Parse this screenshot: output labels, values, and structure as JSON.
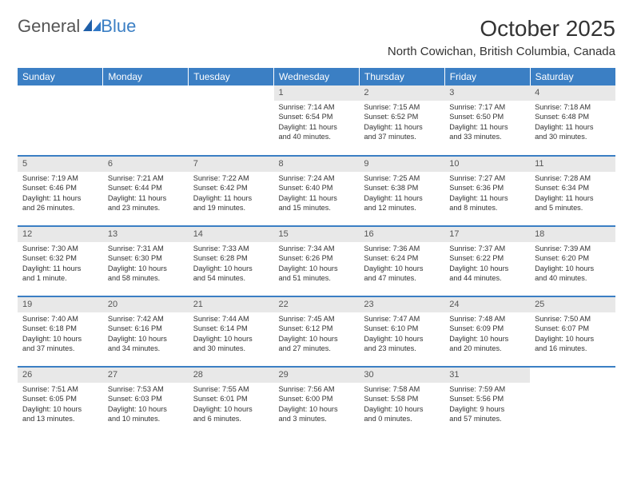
{
  "logo": {
    "word1": "General",
    "word2": "Blue"
  },
  "title": "October 2025",
  "location": "North Cowichan, British Columbia, Canada",
  "colors": {
    "header_bg": "#3b7fc4",
    "header_text": "#ffffff",
    "row_border": "#3b7fc4",
    "daynum_bg": "#e8e8e8",
    "text": "#333333",
    "logo_gray": "#555555",
    "logo_blue": "#3b7fc4"
  },
  "fonts": {
    "title_size": 28,
    "location_size": 15,
    "header_size": 12,
    "cell_size": 9.2,
    "daynum_size": 11
  },
  "weekdays": [
    "Sunday",
    "Monday",
    "Tuesday",
    "Wednesday",
    "Thursday",
    "Friday",
    "Saturday"
  ],
  "layout": {
    "columns": 7,
    "rows": 5,
    "col_width_pct": 14.28
  },
  "weeks": [
    [
      {
        "empty": true
      },
      {
        "empty": true
      },
      {
        "empty": true
      },
      {
        "day": "1",
        "sunrise": "Sunrise: 7:14 AM",
        "sunset": "Sunset: 6:54 PM",
        "dl1": "Daylight: 11 hours",
        "dl2": "and 40 minutes."
      },
      {
        "day": "2",
        "sunrise": "Sunrise: 7:15 AM",
        "sunset": "Sunset: 6:52 PM",
        "dl1": "Daylight: 11 hours",
        "dl2": "and 37 minutes."
      },
      {
        "day": "3",
        "sunrise": "Sunrise: 7:17 AM",
        "sunset": "Sunset: 6:50 PM",
        "dl1": "Daylight: 11 hours",
        "dl2": "and 33 minutes."
      },
      {
        "day": "4",
        "sunrise": "Sunrise: 7:18 AM",
        "sunset": "Sunset: 6:48 PM",
        "dl1": "Daylight: 11 hours",
        "dl2": "and 30 minutes."
      }
    ],
    [
      {
        "day": "5",
        "sunrise": "Sunrise: 7:19 AM",
        "sunset": "Sunset: 6:46 PM",
        "dl1": "Daylight: 11 hours",
        "dl2": "and 26 minutes."
      },
      {
        "day": "6",
        "sunrise": "Sunrise: 7:21 AM",
        "sunset": "Sunset: 6:44 PM",
        "dl1": "Daylight: 11 hours",
        "dl2": "and 23 minutes."
      },
      {
        "day": "7",
        "sunrise": "Sunrise: 7:22 AM",
        "sunset": "Sunset: 6:42 PM",
        "dl1": "Daylight: 11 hours",
        "dl2": "and 19 minutes."
      },
      {
        "day": "8",
        "sunrise": "Sunrise: 7:24 AM",
        "sunset": "Sunset: 6:40 PM",
        "dl1": "Daylight: 11 hours",
        "dl2": "and 15 minutes."
      },
      {
        "day": "9",
        "sunrise": "Sunrise: 7:25 AM",
        "sunset": "Sunset: 6:38 PM",
        "dl1": "Daylight: 11 hours",
        "dl2": "and 12 minutes."
      },
      {
        "day": "10",
        "sunrise": "Sunrise: 7:27 AM",
        "sunset": "Sunset: 6:36 PM",
        "dl1": "Daylight: 11 hours",
        "dl2": "and 8 minutes."
      },
      {
        "day": "11",
        "sunrise": "Sunrise: 7:28 AM",
        "sunset": "Sunset: 6:34 PM",
        "dl1": "Daylight: 11 hours",
        "dl2": "and 5 minutes."
      }
    ],
    [
      {
        "day": "12",
        "sunrise": "Sunrise: 7:30 AM",
        "sunset": "Sunset: 6:32 PM",
        "dl1": "Daylight: 11 hours",
        "dl2": "and 1 minute."
      },
      {
        "day": "13",
        "sunrise": "Sunrise: 7:31 AM",
        "sunset": "Sunset: 6:30 PM",
        "dl1": "Daylight: 10 hours",
        "dl2": "and 58 minutes."
      },
      {
        "day": "14",
        "sunrise": "Sunrise: 7:33 AM",
        "sunset": "Sunset: 6:28 PM",
        "dl1": "Daylight: 10 hours",
        "dl2": "and 54 minutes."
      },
      {
        "day": "15",
        "sunrise": "Sunrise: 7:34 AM",
        "sunset": "Sunset: 6:26 PM",
        "dl1": "Daylight: 10 hours",
        "dl2": "and 51 minutes."
      },
      {
        "day": "16",
        "sunrise": "Sunrise: 7:36 AM",
        "sunset": "Sunset: 6:24 PM",
        "dl1": "Daylight: 10 hours",
        "dl2": "and 47 minutes."
      },
      {
        "day": "17",
        "sunrise": "Sunrise: 7:37 AM",
        "sunset": "Sunset: 6:22 PM",
        "dl1": "Daylight: 10 hours",
        "dl2": "and 44 minutes."
      },
      {
        "day": "18",
        "sunrise": "Sunrise: 7:39 AM",
        "sunset": "Sunset: 6:20 PM",
        "dl1": "Daylight: 10 hours",
        "dl2": "and 40 minutes."
      }
    ],
    [
      {
        "day": "19",
        "sunrise": "Sunrise: 7:40 AM",
        "sunset": "Sunset: 6:18 PM",
        "dl1": "Daylight: 10 hours",
        "dl2": "and 37 minutes."
      },
      {
        "day": "20",
        "sunrise": "Sunrise: 7:42 AM",
        "sunset": "Sunset: 6:16 PM",
        "dl1": "Daylight: 10 hours",
        "dl2": "and 34 minutes."
      },
      {
        "day": "21",
        "sunrise": "Sunrise: 7:44 AM",
        "sunset": "Sunset: 6:14 PM",
        "dl1": "Daylight: 10 hours",
        "dl2": "and 30 minutes."
      },
      {
        "day": "22",
        "sunrise": "Sunrise: 7:45 AM",
        "sunset": "Sunset: 6:12 PM",
        "dl1": "Daylight: 10 hours",
        "dl2": "and 27 minutes."
      },
      {
        "day": "23",
        "sunrise": "Sunrise: 7:47 AM",
        "sunset": "Sunset: 6:10 PM",
        "dl1": "Daylight: 10 hours",
        "dl2": "and 23 minutes."
      },
      {
        "day": "24",
        "sunrise": "Sunrise: 7:48 AM",
        "sunset": "Sunset: 6:09 PM",
        "dl1": "Daylight: 10 hours",
        "dl2": "and 20 minutes."
      },
      {
        "day": "25",
        "sunrise": "Sunrise: 7:50 AM",
        "sunset": "Sunset: 6:07 PM",
        "dl1": "Daylight: 10 hours",
        "dl2": "and 16 minutes."
      }
    ],
    [
      {
        "day": "26",
        "sunrise": "Sunrise: 7:51 AM",
        "sunset": "Sunset: 6:05 PM",
        "dl1": "Daylight: 10 hours",
        "dl2": "and 13 minutes."
      },
      {
        "day": "27",
        "sunrise": "Sunrise: 7:53 AM",
        "sunset": "Sunset: 6:03 PM",
        "dl1": "Daylight: 10 hours",
        "dl2": "and 10 minutes."
      },
      {
        "day": "28",
        "sunrise": "Sunrise: 7:55 AM",
        "sunset": "Sunset: 6:01 PM",
        "dl1": "Daylight: 10 hours",
        "dl2": "and 6 minutes."
      },
      {
        "day": "29",
        "sunrise": "Sunrise: 7:56 AM",
        "sunset": "Sunset: 6:00 PM",
        "dl1": "Daylight: 10 hours",
        "dl2": "and 3 minutes."
      },
      {
        "day": "30",
        "sunrise": "Sunrise: 7:58 AM",
        "sunset": "Sunset: 5:58 PM",
        "dl1": "Daylight: 10 hours",
        "dl2": "and 0 minutes."
      },
      {
        "day": "31",
        "sunrise": "Sunrise: 7:59 AM",
        "sunset": "Sunset: 5:56 PM",
        "dl1": "Daylight: 9 hours",
        "dl2": "and 57 minutes."
      },
      {
        "empty": true
      }
    ]
  ]
}
